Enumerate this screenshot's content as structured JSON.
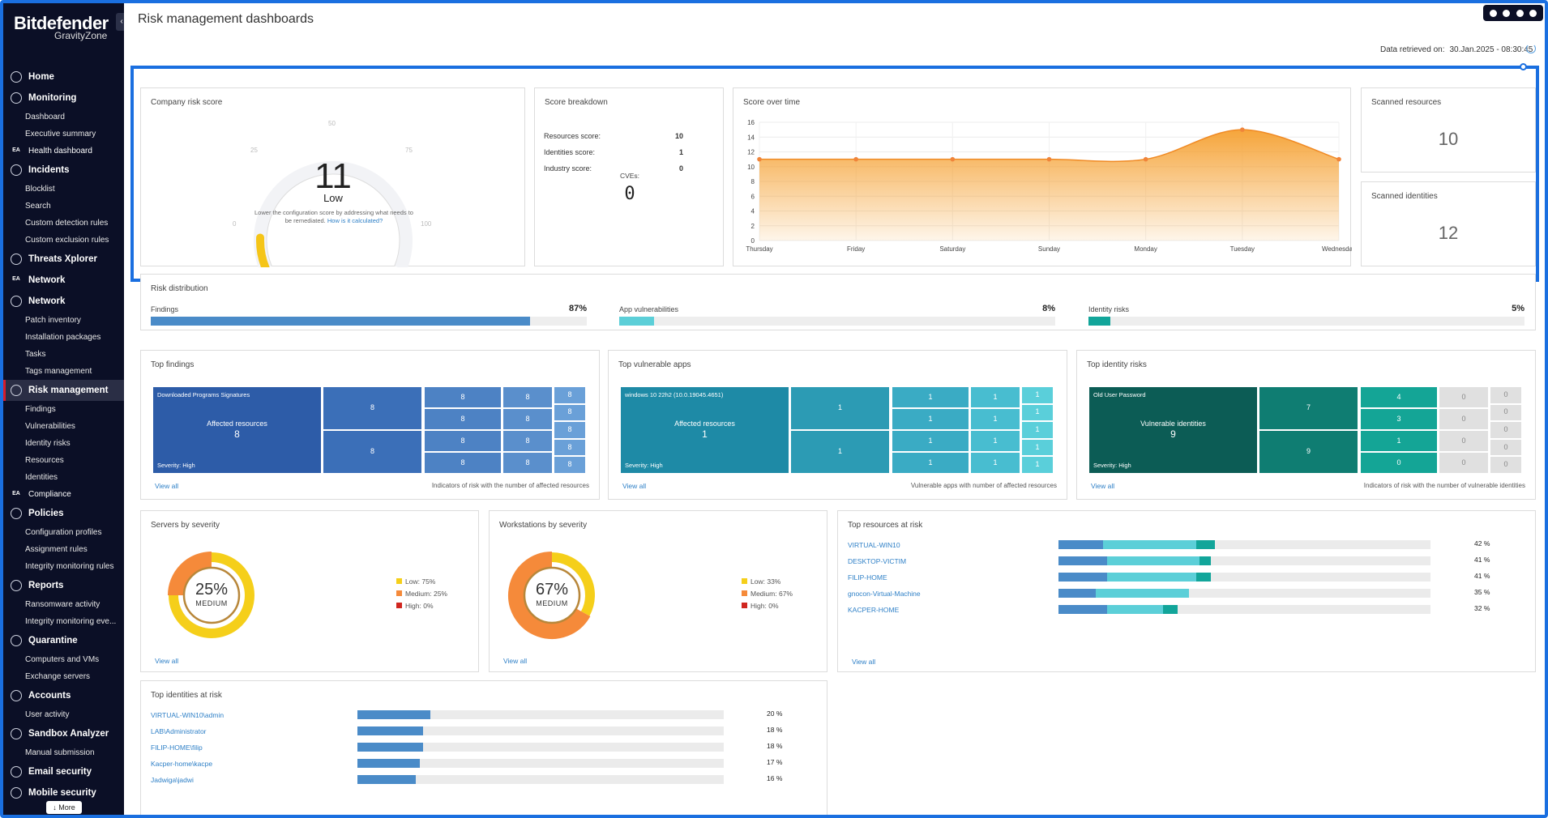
{
  "brand": {
    "name": "Bitdefender",
    "product": "GravityZone"
  },
  "sidebar": {
    "collapse_glyph": "‹",
    "more_label": "↓ More",
    "items": [
      {
        "label": "Home",
        "icon": "home-icon",
        "type": "main"
      },
      {
        "label": "Monitoring",
        "icon": "monitoring-icon",
        "type": "main"
      },
      {
        "label": "Dashboard",
        "type": "sub"
      },
      {
        "label": "Executive summary",
        "type": "sub"
      },
      {
        "label": "Health dashboard",
        "icon": "ea-badge-icon",
        "badge": "EA",
        "type": "ea"
      },
      {
        "label": "Incidents",
        "icon": "incidents-icon",
        "type": "main"
      },
      {
        "label": "Blocklist",
        "type": "sub"
      },
      {
        "label": "Search",
        "type": "sub"
      },
      {
        "label": "Custom detection rules",
        "type": "sub"
      },
      {
        "label": "Custom exclusion rules",
        "type": "sub"
      },
      {
        "label": "Threats Xplorer",
        "icon": "shield-icon",
        "type": "main"
      },
      {
        "label": "Network",
        "icon": "ea-badge-icon",
        "badge": "EA",
        "type": "main-ea"
      },
      {
        "label": "Network",
        "icon": "network-icon",
        "type": "main"
      },
      {
        "label": "Patch inventory",
        "type": "sub"
      },
      {
        "label": "Installation packages",
        "type": "sub"
      },
      {
        "label": "Tasks",
        "type": "sub"
      },
      {
        "label": "Tags management",
        "type": "sub"
      },
      {
        "label": "Risk management",
        "icon": "risk-icon",
        "type": "main",
        "active": true
      },
      {
        "label": "Findings",
        "type": "sub"
      },
      {
        "label": "Vulnerabilities",
        "type": "sub"
      },
      {
        "label": "Identity risks",
        "type": "sub"
      },
      {
        "label": "Resources",
        "type": "sub"
      },
      {
        "label": "Identities",
        "type": "sub"
      },
      {
        "label": "Compliance",
        "icon": "ea-badge-icon",
        "badge": "EA",
        "type": "ea"
      },
      {
        "label": "Policies",
        "icon": "policies-icon",
        "type": "main"
      },
      {
        "label": "Configuration profiles",
        "type": "sub"
      },
      {
        "label": "Assignment rules",
        "type": "sub"
      },
      {
        "label": "Integrity monitoring rules",
        "type": "sub"
      },
      {
        "label": "Reports",
        "icon": "reports-icon",
        "type": "main"
      },
      {
        "label": "Ransomware activity",
        "type": "sub"
      },
      {
        "label": "Integrity monitoring eve...",
        "type": "sub"
      },
      {
        "label": "Quarantine",
        "icon": "quarantine-icon",
        "type": "main"
      },
      {
        "label": "Computers and VMs",
        "type": "sub"
      },
      {
        "label": "Exchange servers",
        "type": "sub"
      },
      {
        "label": "Accounts",
        "icon": "accounts-icon",
        "type": "main"
      },
      {
        "label": "User activity",
        "type": "sub"
      },
      {
        "label": "Sandbox Analyzer",
        "icon": "sandbox-icon",
        "type": "main"
      },
      {
        "label": "Manual submission",
        "type": "sub"
      },
      {
        "label": "Email security",
        "icon": "email-icon",
        "type": "main"
      },
      {
        "label": "Mobile security",
        "icon": "mobile-icon",
        "type": "main"
      }
    ]
  },
  "header": {
    "title": "Risk management dashboards",
    "retrieved_label": "Data retrieved on:",
    "retrieved_value": "30.Jan.2025 - 08:30:45"
  },
  "company_risk": {
    "title": "Company risk score",
    "score": "11",
    "level": "Low",
    "score_value": 11,
    "ticks": [
      "0",
      "25",
      "50",
      "75",
      "100"
    ],
    "note": "Lower the configuration score by addressing what needs to be remediated.",
    "link": "How is it calculated?",
    "color": "#f5c518"
  },
  "score_breakdown": {
    "title": "Score breakdown",
    "rows": [
      {
        "label": "Resources score:",
        "value": "10"
      },
      {
        "label": "Identities score:",
        "value": "1"
      },
      {
        "label": "Industry score:",
        "value": "0"
      }
    ],
    "cves_label": "CVEs:",
    "cves_value": "0"
  },
  "score_over_time": {
    "title": "Score over time"
  },
  "chart_data": {
    "type": "area",
    "title": "Score over time",
    "x": [
      "Thursday",
      "Friday",
      "Saturday",
      "Sunday",
      "Monday",
      "Tuesday",
      "Wednesday"
    ],
    "series": [
      {
        "values": [
          11,
          11,
          11,
          11,
          11,
          15,
          11
        ]
      }
    ],
    "ylim": [
      0,
      16
    ],
    "yticks": [
      "0",
      "2",
      "4",
      "6",
      "8",
      "10",
      "12",
      "14",
      "16"
    ],
    "grid": true,
    "color": "#f5a030"
  },
  "scanned_resources": {
    "title": "Scanned resources",
    "value": "10"
  },
  "scanned_identities": {
    "title": "Scanned identities",
    "value": "12"
  },
  "risk_distribution": {
    "title": "Risk distribution",
    "items": [
      {
        "label": "Findings",
        "pct": "87%",
        "value": 87,
        "color": "#4a8bc8"
      },
      {
        "label": "App vulnerabilities",
        "pct": "8%",
        "value": 8,
        "color": "#5ccfd8"
      },
      {
        "label": "Identity risks",
        "pct": "5%",
        "value": 5,
        "color": "#12a59a"
      }
    ]
  },
  "top_findings": {
    "title": "Top findings",
    "main_name": "Downloaded Programs Signatures",
    "main_label": "Affected resources",
    "main_value": "8",
    "severity": "Severity: High",
    "cells": [
      "8",
      "8",
      "8",
      "8",
      "8",
      "8",
      "8",
      "8",
      "8",
      "8",
      "8",
      "8",
      "8",
      "8",
      "8"
    ],
    "view_all": "View all",
    "caption": "Indicators of risk with the number of affected resources"
  },
  "top_apps": {
    "title": "Top vulnerable apps",
    "main_name": "windows 10 22h2 (10.0.19045.4651)",
    "main_label": "Affected resources",
    "main_value": "1",
    "severity": "Severity: High",
    "cells": [
      "1",
      "1",
      "1",
      "1",
      "1",
      "1",
      "1",
      "1",
      "1",
      "1",
      "1",
      "1",
      "1",
      "1",
      "1"
    ],
    "view_all": "View all",
    "caption": "Vulnerable apps with number of affected resources"
  },
  "top_identity": {
    "title": "Top identity risks",
    "main_name": "Old User Password",
    "main_label": "Vulnerable identities",
    "main_value": "9",
    "severity": "Severity: High",
    "cells": [
      "7",
      "9",
      "4",
      "3",
      "1",
      "0",
      "0",
      "0",
      "0",
      "0",
      "0",
      "0",
      "0",
      "0",
      "0"
    ],
    "view_all": "View all",
    "caption": "Indicators of risk with the number of vulnerable identities"
  },
  "servers": {
    "title": "Servers by severity",
    "pct": "25%",
    "level": "MEDIUM",
    "slices": [
      {
        "label": "Low:",
        "pct": "75%",
        "value": 75,
        "color": "#f5cf1a"
      },
      {
        "label": "Medium:",
        "pct": "25%",
        "value": 25,
        "color": "#f58a3a"
      },
      {
        "label": "High:",
        "pct": "0%",
        "value": 0,
        "color": "#d0261f"
      }
    ],
    "view_all": "View all"
  },
  "workstations": {
    "title": "Workstations by severity",
    "pct": "67%",
    "level": "MEDIUM",
    "slices": [
      {
        "label": "Low:",
        "pct": "33%",
        "value": 33,
        "color": "#f5cf1a"
      },
      {
        "label": "Medium:",
        "pct": "67%",
        "value": 67,
        "color": "#f58a3a"
      },
      {
        "label": "High:",
        "pct": "0%",
        "value": 0,
        "color": "#d0261f"
      }
    ],
    "view_all": "View all"
  },
  "top_resources": {
    "title": "Top resources at risk",
    "rows": [
      {
        "name": "VIRTUAL-WIN10",
        "pct": "42 %",
        "segments": [
          12,
          25,
          5
        ]
      },
      {
        "name": "DESKTOP-VICTIM",
        "pct": "41 %",
        "segments": [
          13,
          25,
          3
        ]
      },
      {
        "name": "FILIP-HOME",
        "pct": "41 %",
        "segments": [
          13,
          24,
          4
        ]
      },
      {
        "name": "gnocon-Virtual-Machine",
        "pct": "35 %",
        "segments": [
          10,
          25,
          0
        ]
      },
      {
        "name": "KACPER-HOME",
        "pct": "32 %",
        "segments": [
          13,
          15,
          4
        ]
      }
    ],
    "colors": [
      "#4a8bc8",
      "#5ccfd8",
      "#12a59a"
    ],
    "view_all": "View all"
  },
  "top_identities": {
    "title": "Top identities at risk",
    "rows": [
      {
        "name": "VIRTUAL-WIN10\\admin",
        "pct": "20 %",
        "value": 20
      },
      {
        "name": "LAB\\Administrator",
        "pct": "18 %",
        "value": 18
      },
      {
        "name": "FILIP-HOME\\filip",
        "pct": "18 %",
        "value": 18
      },
      {
        "name": "Kacper-home\\kacpe",
        "pct": "17 %",
        "value": 17
      },
      {
        "name": "Jadwiga\\jadwi",
        "pct": "16 %",
        "value": 16
      }
    ],
    "color": "#4a8bc8"
  }
}
